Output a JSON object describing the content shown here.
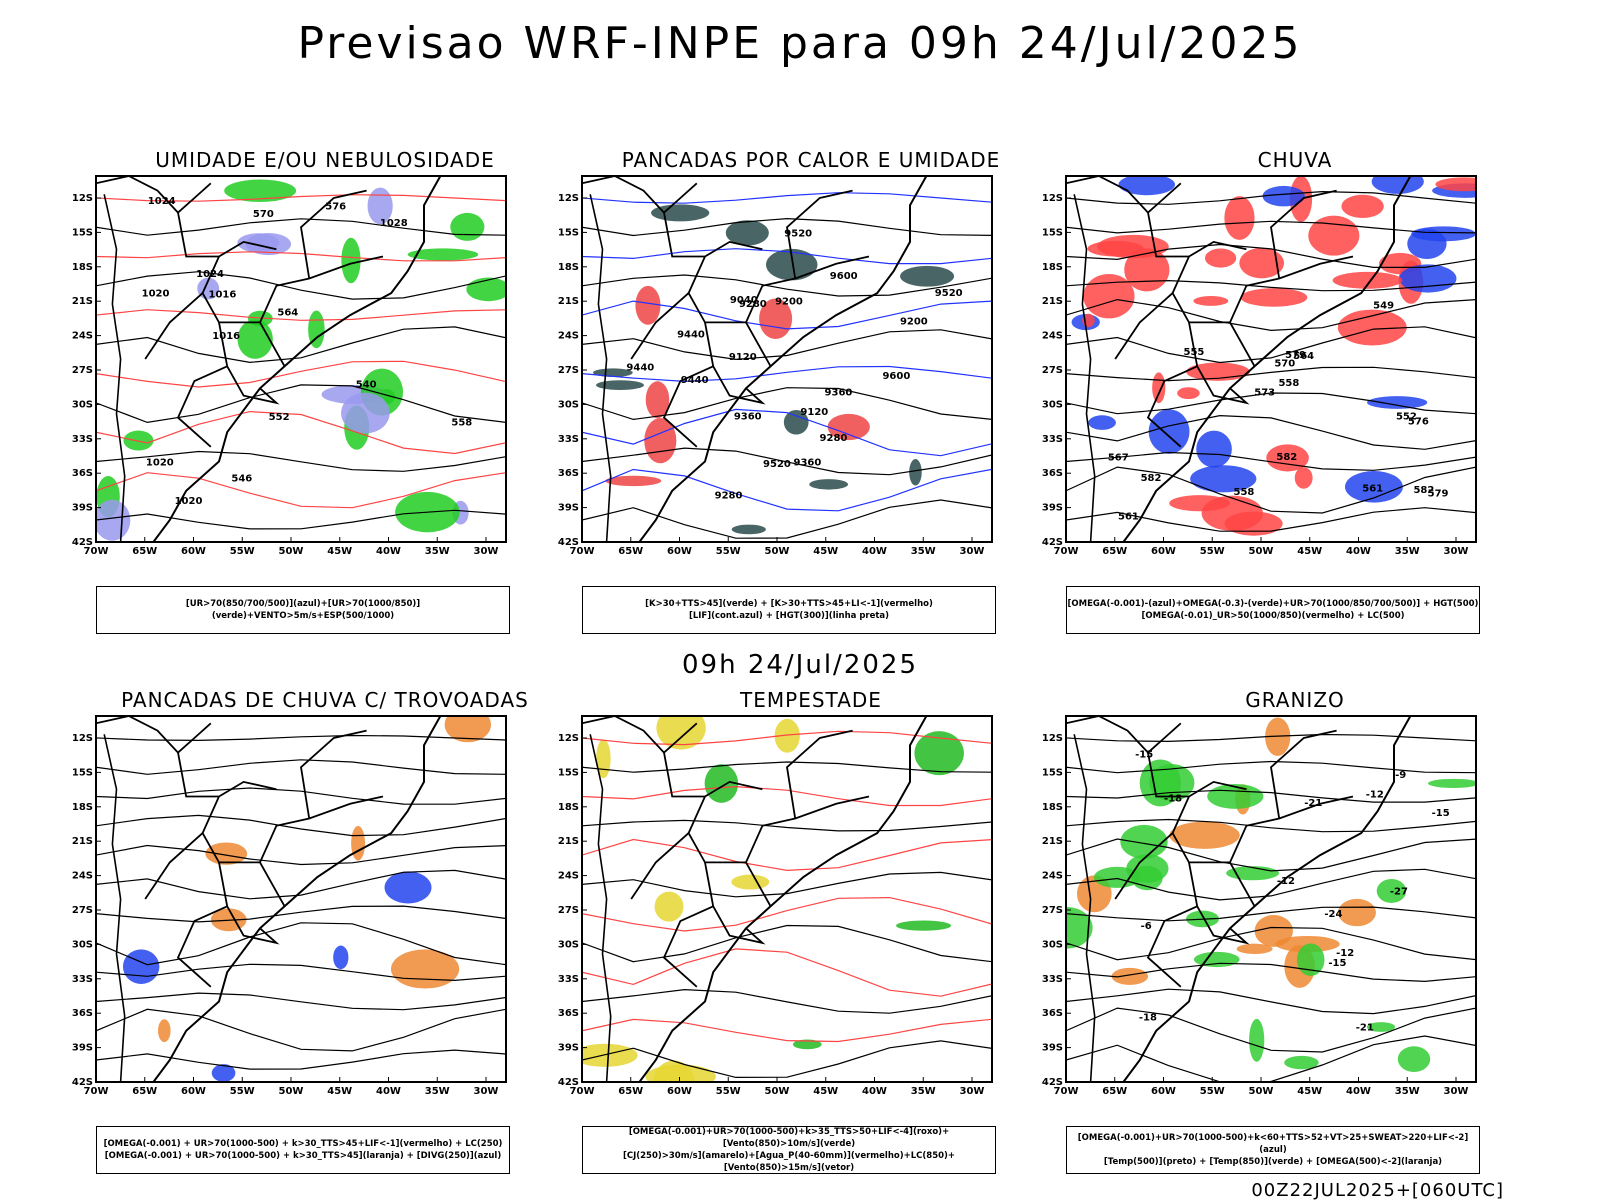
{
  "header": {
    "title": "Previsao WRF-INPE  para 09h 24/Jul/2025"
  },
  "mid": {
    "title": "09h 24/Jul/2025"
  },
  "footer": {
    "run": "00Z22JUL2025+[060UTC]"
  },
  "axes": {
    "lat_labels": [
      "12S",
      "15S",
      "18S",
      "21S",
      "24S",
      "27S",
      "30S",
      "33S",
      "36S",
      "39S",
      "42S"
    ],
    "lon_labels": [
      "70W",
      "65W",
      "60W",
      "55W",
      "50W",
      "45W",
      "40W",
      "35W",
      "30W"
    ]
  },
  "panels": [
    {
      "id": "umidade",
      "title": "UMIDADE E/OU NEBULOSIDADE",
      "legend": [
        "[UR>70(850/700/500)](azul)+[UR>70(1000/850)](verde)+VENTO>5m/s+ESP(500/1000)"
      ],
      "colors": {
        "blob": "#22cc22",
        "blob2": "#9999ee",
        "line": "#ff4444"
      },
      "contour_labels": [
        "1016",
        "1020",
        "1024",
        "1028",
        "1020",
        "576",
        "570",
        "564",
        "558",
        "552",
        "546",
        "540",
        "1016",
        "1020",
        "1024"
      ]
    },
    {
      "id": "pancadas-calor",
      "title": "PANCADAS POR CALOR E UMIDADE",
      "legend": [
        "[K>30+TTS>45](verde) + [K>30+TTS>45+LI<-1](vermelho)",
        "[LIF](cont.azul) + [HGT(300)](linha preta)"
      ],
      "colors": {
        "blob": "#2a4a4a",
        "blob2": "#ee4444",
        "line": "#2233ff"
      },
      "contour_labels": [
        "9600",
        "9600",
        "9520",
        "9520",
        "9520",
        "9440",
        "9440",
        "9440",
        "9360",
        "9360",
        "9360",
        "9280",
        "9280",
        "9280",
        "9200",
        "9200",
        "9120",
        "9120",
        "9040"
      ]
    },
    {
      "id": "chuva",
      "title": "CHUVA",
      "legend": [
        "[OMEGA(-0.001)-(azul)+OMEGA(-0.3)-(verde)+UR>70(1000/850/700/500)] + HGT(500)",
        "[OMEGA(-0.01)_UR>50(1000/850)(vermelho) + LC(500)"
      ],
      "colors": {
        "blob": "#ff4444",
        "blob2": "#2244ee",
        "line": "#000000"
      },
      "contour_labels": [
        "582",
        "582",
        "582",
        "579",
        "579",
        "576",
        "573",
        "570",
        "567",
        "564",
        "561",
        "558",
        "555",
        "552",
        "549",
        "561",
        "558"
      ]
    },
    {
      "id": "pancadas-trovoadas",
      "title": "PANCADAS DE CHUVA C/ TROVOADAS",
      "legend": [
        "[OMEGA(-0.001) + UR>70(1000-500) + k>30_TTS>45+LIF<-1](vermelho) + LC(250)",
        "[OMEGA(-0.001) + UR>70(1000-500) + k>30_TTS>45](laranja) + [DIVG(250)](azul)"
      ],
      "colors": {
        "blob": "#ee8833",
        "blob2": "#2244ee",
        "line": "#000000"
      },
      "contour_labels": []
    },
    {
      "id": "tempestade",
      "title": "TEMPESTADE",
      "legend": [
        "[OMEGA(-0.001)+UR>70(1000-500)+k>35_TTS>50+LIF<-4](roxo)+[Vento(850)>10m/s](verde)",
        "[CJ(250)>30m/s](amarelo)+[Agua_P(40-60mm)](vermelho)+LC(850)+[Vento(850)>15m/s](vetor)"
      ],
      "colors": {
        "blob": "#e6d633",
        "blob2": "#22bb22",
        "line": "#ff4444"
      },
      "contour_labels": []
    },
    {
      "id": "granizo",
      "title": "GRANIZO",
      "legend": [
        "[OMEGA(-0.001)+UR>70(1000-500)+k<60+TTS>52+VT>25+SWEAT>220+LIF<-2](azul)",
        "[Temp(500)](preto) + [Temp(850)](verde) + [OMEGA(500)<-2](laranja)"
      ],
      "colors": {
        "blob": "#33cc33",
        "blob2": "#ee8833",
        "line": "#000000"
      },
      "contour_labels": [
        "-6",
        "-9",
        "-12",
        "-12",
        "-15",
        "-15",
        "-18",
        "-21",
        "-24",
        "-27",
        "-12",
        "-15",
        "-18",
        "-21"
      ]
    }
  ]
}
